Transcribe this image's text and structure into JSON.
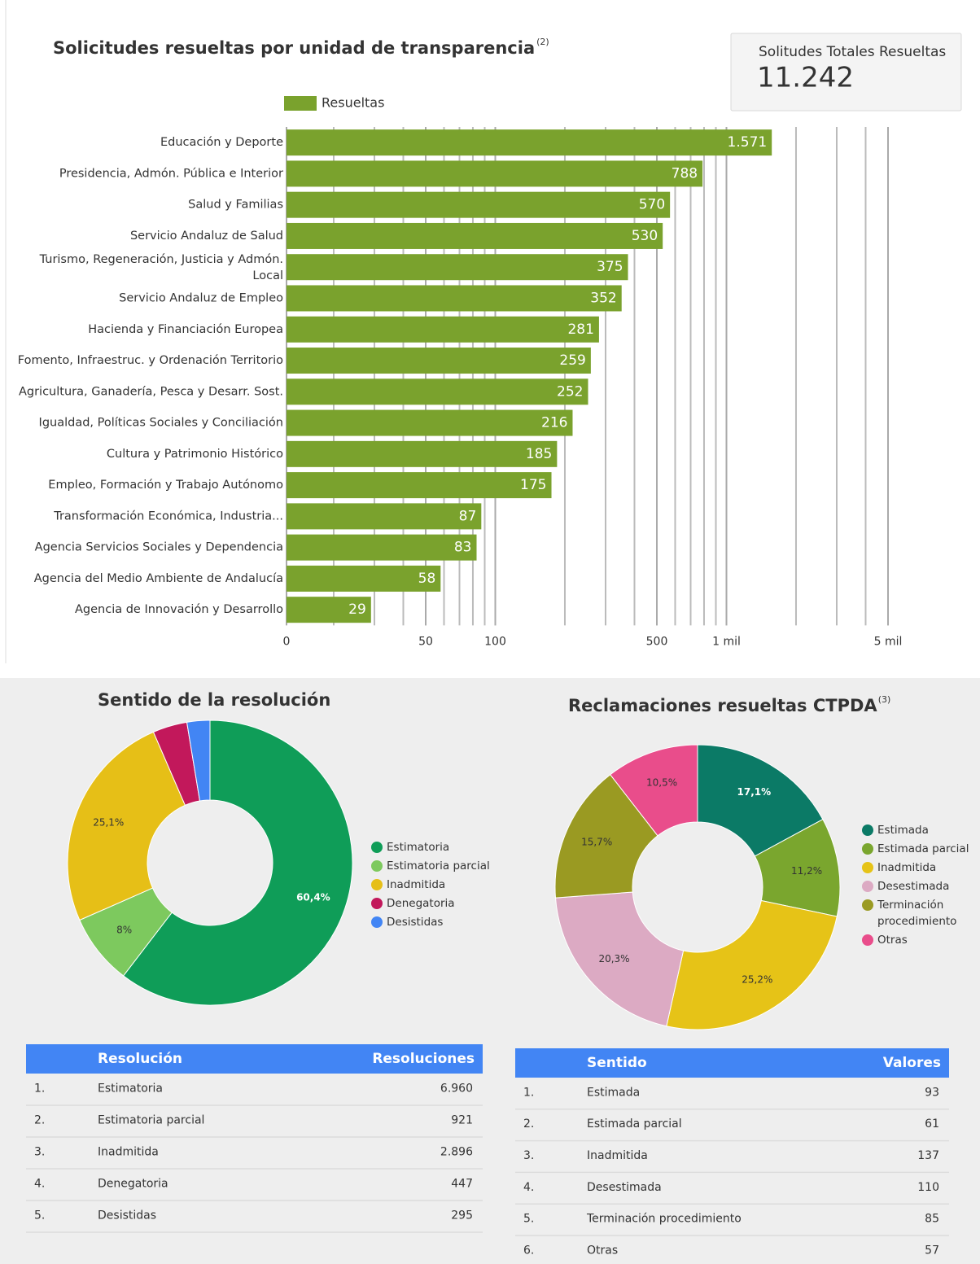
{
  "chart_data": [
    {
      "type": "bar",
      "title": "Solicitudes resueltas por unidad de transparencia",
      "title_note": "(2)",
      "categories": [
        "Educación y Deporte",
        "Presidencia, Admón. Pública e Interior",
        "Salud y Familias",
        "Servicio Andaluz de Salud",
        "Turismo, Regeneración, Justicia y Admón. Local",
        "Servicio Andaluz de Empleo",
        "Hacienda y Financiación Europea",
        "Fomento, Infraestruc. y Ordenación Territorio",
        "Agricultura, Ganadería, Pesca y Desarr. Sost.",
        "Igualdad, Políticas Sociales y Conciliación",
        "Cultura y Patrimonio Histórico",
        "Empleo, Formación y Trabajo Autónomo",
        "Transformación Económica, Industria...",
        "Agencia Servicios Sociales y Dependencia",
        "Agencia del Medio Ambiente de Andalucía",
        "Agencia de Innovación y Desarrollo"
      ],
      "series": [
        {
          "name": "Resueltas",
          "color": "#7aa22d",
          "values": [
            1571,
            788,
            570,
            530,
            375,
            352,
            281,
            259,
            252,
            216,
            185,
            175,
            87,
            83,
            58,
            29
          ],
          "value_labels": [
            "1.571",
            "788",
            "570",
            "530",
            "375",
            "352",
            "281",
            "259",
            "252",
            "216",
            "185",
            "175",
            "87",
            "83",
            "58",
            "29"
          ]
        }
      ],
      "orientation": "horizontal",
      "log_scale": true,
      "grid": true,
      "xlim": [
        0,
        5000
      ],
      "xticks": [
        0,
        50,
        100,
        500,
        {
          "value": 1000,
          "label": "1 mil"
        },
        {
          "value": 5000,
          "label": "5 mil"
        }
      ]
    },
    {
      "type": "pie",
      "title": "Sentido de la resolución",
      "categories": [
        "Estimatoria",
        "Estimatoria parcial",
        "Inadmitida",
        "Denegatoria",
        "Desistidas"
      ],
      "values": [
        60.4,
        8,
        25.1,
        3.9,
        2.6
      ],
      "value_labels": [
        "60,4%",
        "8%",
        "25,1%",
        null,
        null
      ],
      "colors": [
        "#0f9d58",
        "#7dc95e",
        "#e6bf17",
        "#c2185b",
        "#4285f4"
      ]
    },
    {
      "type": "pie",
      "title": "Reclamaciones resueltas CTPDA",
      "title_note": "(3)",
      "categories": [
        "Estimada",
        "Estimada parcial",
        "Inadmitida",
        "Desestimada",
        "Terminación procedimiento",
        "Otras"
      ],
      "values": [
        17.1,
        11.2,
        25.2,
        20.3,
        15.7,
        10.5
      ],
      "value_labels": [
        "17,1%",
        "11,2%",
        "25,2%",
        "20,3%",
        "15,7%",
        "10,5%"
      ],
      "colors": [
        "#0b7a66",
        "#7aa62e",
        "#e6c317",
        "#dcaac3",
        "#9a9a22",
        "#e94d8b"
      ]
    }
  ],
  "kpi": {
    "label": "Solitudes Totales Resueltas",
    "value": "11.242"
  },
  "tables": [
    {
      "columns": [
        "Resolución",
        "Resoluciones"
      ],
      "rows": [
        [
          "1.",
          "Estimatoria",
          "6.960"
        ],
        [
          "2.",
          "Estimatoria parcial",
          "921"
        ],
        [
          "3.",
          "Inadmitida",
          "2.896"
        ],
        [
          "4.",
          "Denegatoria",
          "447"
        ],
        [
          "5.",
          "Desistidas",
          "295"
        ]
      ]
    },
    {
      "columns": [
        "Sentido",
        "Valores"
      ],
      "rows": [
        [
          "1.",
          "Estimada",
          "93"
        ],
        [
          "2.",
          "Estimada parcial",
          "61"
        ],
        [
          "3.",
          "Inadmitida",
          "137"
        ],
        [
          "4.",
          "Desestimada",
          "110"
        ],
        [
          "5.",
          "Terminación procedimiento",
          "85"
        ],
        [
          "6.",
          "Otras",
          "57"
        ]
      ]
    }
  ]
}
